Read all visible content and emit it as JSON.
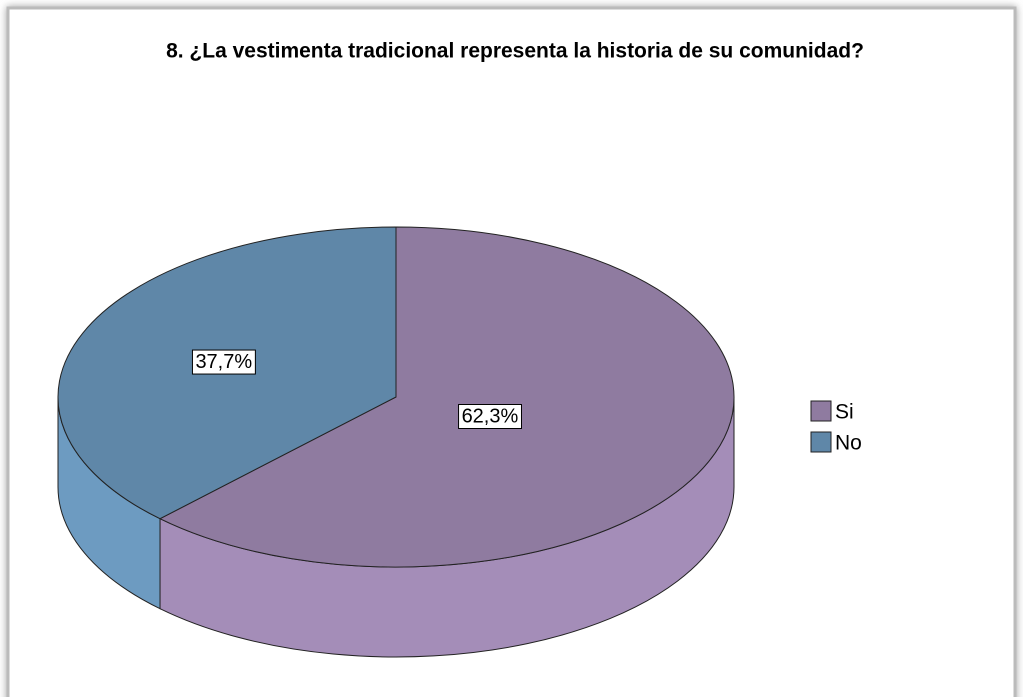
{
  "chart_data": {
    "type": "pie",
    "title": "8. ¿La vestimenta tradicional representa la historia de su comunidad?",
    "categories": [
      "Si",
      "No"
    ],
    "values": [
      62.3,
      37.7
    ],
    "value_labels": [
      "62,3%",
      "37,7%"
    ],
    "colors": [
      "#8f7ba0",
      "#5f87a8"
    ],
    "legend": "right"
  }
}
